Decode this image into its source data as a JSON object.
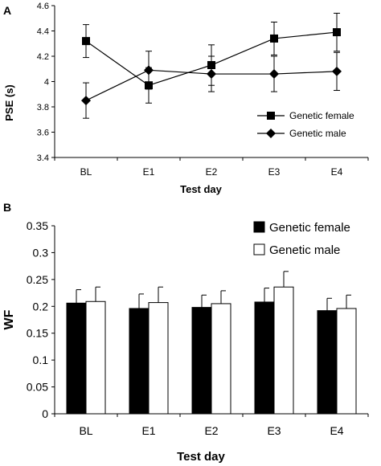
{
  "chart_data": [
    {
      "panel": "A",
      "type": "line",
      "xlabel": "Test day",
      "ylabel": "PSE (s)",
      "categories": [
        "BL",
        "E1",
        "E2",
        "E3",
        "E4"
      ],
      "ylim": [
        3.4,
        4.6
      ],
      "yticks": [
        "3.4",
        "3.6",
        "3.8",
        "4",
        "4.2",
        "4.4",
        "4.6"
      ],
      "legend_position": "lower-right",
      "series": [
        {
          "name": "Genetic female",
          "marker": "square",
          "values": [
            4.32,
            3.97,
            4.13,
            4.34,
            4.39
          ],
          "errors": [
            0.13,
            0.14,
            0.16,
            0.13,
            0.15
          ]
        },
        {
          "name": "Genetic male",
          "marker": "diamond",
          "values": [
            3.85,
            4.09,
            4.06,
            4.06,
            4.08
          ],
          "errors": [
            0.14,
            0.15,
            0.14,
            0.14,
            0.15
          ]
        }
      ]
    },
    {
      "panel": "B",
      "type": "bar",
      "xlabel": "Test day",
      "ylabel": "WF",
      "categories": [
        "BL",
        "E1",
        "E2",
        "E3",
        "E4"
      ],
      "ylim": [
        0,
        0.35
      ],
      "yticks": [
        "0",
        "0.05",
        "0.1",
        "0.15",
        "0.2",
        "0.25",
        "0.3",
        "0.35"
      ],
      "legend_position": "top-right",
      "series": [
        {
          "name": "Genetic female",
          "color": "#000000",
          "values": [
            0.206,
            0.196,
            0.198,
            0.208,
            0.192
          ],
          "errors": [
            0.025,
            0.027,
            0.023,
            0.026,
            0.023
          ]
        },
        {
          "name": "Genetic male",
          "color": "#ffffff",
          "values": [
            0.209,
            0.207,
            0.205,
            0.236,
            0.196
          ],
          "errors": [
            0.027,
            0.029,
            0.024,
            0.029,
            0.025
          ]
        }
      ]
    }
  ]
}
